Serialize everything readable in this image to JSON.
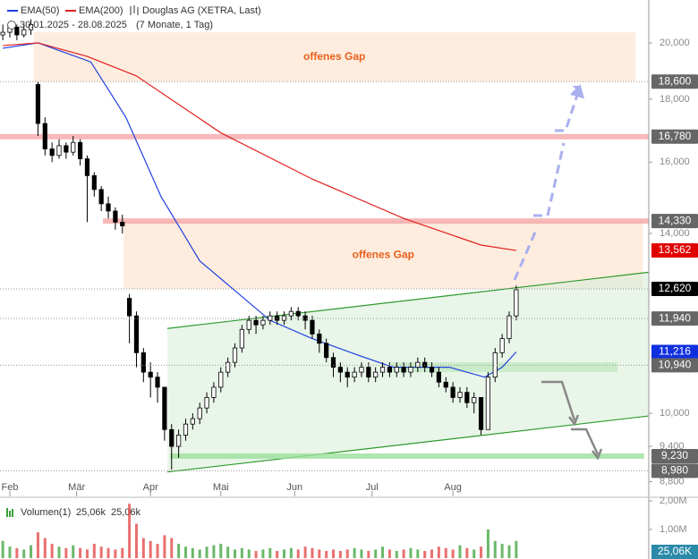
{
  "chart_data": [
    {
      "type": "candlestick",
      "title": "Douglas AG (XETRA, Last)",
      "subtitle": "30.01.2025 - 28.08.2025",
      "period": "(7 Monate, 1 Tag)",
      "x": [
        0,
        2,
        4,
        6,
        8,
        10,
        12,
        14,
        16,
        18,
        20,
        22,
        24,
        26,
        28,
        30,
        32,
        34,
        36,
        38,
        40,
        42,
        44,
        46,
        48,
        50,
        52,
        54,
        56,
        58,
        60,
        62,
        64,
        66,
        68,
        70,
        72,
        74,
        76,
        78,
        80,
        82,
        84,
        86,
        88,
        90,
        92,
        94,
        96,
        98,
        100,
        102,
        104,
        106,
        108,
        110,
        112,
        114,
        116,
        118,
        120,
        122,
        124,
        126,
        128,
        130,
        132,
        134,
        136,
        138,
        140,
        142,
        144,
        146
      ],
      "open": [
        20300,
        20400,
        20600,
        20300,
        20500,
        18500,
        17200,
        16400,
        16200,
        16500,
        16300,
        16600,
        16100,
        15600,
        15200,
        14800,
        14600,
        14300,
        12400,
        12000,
        11200,
        10800,
        10700,
        10500,
        9700,
        9400,
        9600,
        9800,
        9900,
        10100,
        10300,
        10500,
        10800,
        11000,
        11300,
        11700,
        11900,
        11800,
        11900,
        12000,
        11900,
        12000,
        12100,
        12000,
        11900,
        11600,
        11400,
        11100,
        10900,
        10800,
        10700,
        10800,
        10900,
        10700,
        10800,
        10900,
        10800,
        10900,
        10800,
        10900,
        11000,
        10900,
        10800,
        10600,
        10500,
        10300,
        10400,
        10200,
        10300,
        9700,
        10700,
        11200,
        11500,
        12000
      ],
      "high": [
        20700,
        20800,
        20700,
        20700,
        20900,
        18600,
        17400,
        16600,
        16700,
        16600,
        16800,
        16700,
        16200,
        15700,
        15300,
        15000,
        14700,
        14500,
        12500,
        12100,
        11300,
        11000,
        10800,
        10500,
        9800,
        9700,
        9900,
        10000,
        10200,
        10400,
        10600,
        10900,
        11100,
        11400,
        11800,
        12000,
        12000,
        12000,
        12100,
        12100,
        12100,
        12200,
        12200,
        12100,
        12000,
        11700,
        11500,
        11200,
        11000,
        10900,
        10900,
        11000,
        11000,
        10900,
        11000,
        11000,
        11000,
        11000,
        11000,
        11100,
        11100,
        11000,
        10900,
        10700,
        10600,
        10500,
        10500,
        10400,
        10300,
        10800,
        11300,
        11600,
        12100,
        12700
      ],
      "low": [
        20100,
        20200,
        20100,
        20200,
        20300,
        16800,
        16200,
        16000,
        16100,
        16100,
        16200,
        15900,
        14300,
        15000,
        14600,
        14400,
        14100,
        14000,
        11400,
        10900,
        10600,
        10300,
        10200,
        9500,
        9000,
        9200,
        9500,
        9700,
        9800,
        10000,
        10200,
        10400,
        10700,
        10900,
        11200,
        11600,
        11600,
        11700,
        11800,
        11800,
        11800,
        11900,
        11900,
        11700,
        11500,
        11200,
        11000,
        10700,
        10600,
        10500,
        10600,
        10700,
        10600,
        10600,
        10700,
        10700,
        10700,
        10700,
        10700,
        10800,
        10800,
        10700,
        10500,
        10400,
        10200,
        10200,
        10100,
        10000,
        9600,
        9700,
        10600,
        11100,
        11400,
        11900
      ],
      "close": [
        20400,
        20600,
        20300,
        20500,
        20700,
        17200,
        16400,
        16200,
        16500,
        16300,
        16600,
        16100,
        15600,
        15200,
        14800,
        14600,
        14300,
        14200,
        12000,
        11200,
        10800,
        10700,
        10500,
        9700,
        9400,
        9600,
        9800,
        9900,
        10100,
        10300,
        10500,
        10800,
        11000,
        11300,
        11700,
        11900,
        11800,
        11900,
        12000,
        11900,
        12000,
        12100,
        12000,
        11900,
        11600,
        11400,
        11100,
        10900,
        10800,
        10700,
        10800,
        10900,
        10700,
        10800,
        10900,
        10800,
        10900,
        10800,
        10900,
        11000,
        10900,
        10800,
        10600,
        10500,
        10300,
        10400,
        10200,
        10300,
        9700,
        10700,
        11200,
        11500,
        12000,
        12600
      ],
      "up_color": "#ffffff",
      "down_color": "#000000",
      "xlim": [
        -0.8,
        183.7
      ],
      "xticks": [
        {
          "value": 2,
          "label": "Feb"
        },
        {
          "value": 21,
          "label": "Mär"
        },
        {
          "value": 42,
          "label": "Apr"
        },
        {
          "value": 62,
          "label": "Mai"
        },
        {
          "value": 83,
          "label": "Jun"
        },
        {
          "value": 105,
          "label": "Jul"
        },
        {
          "value": 128,
          "label": "Aug"
        }
      ],
      "ylim": [
        8560,
        21670
      ],
      "log_scale": true,
      "yticks": [
        {
          "value": 20000,
          "label": "20,000"
        },
        {
          "value": 18000,
          "label": "18,000"
        },
        {
          "value": 16000,
          "label": "16,000"
        },
        {
          "value": 14000,
          "label": "14,000"
        },
        {
          "value": 10000,
          "label": "10,000"
        },
        {
          "value": 9400,
          "label": "9,400"
        },
        {
          "value": 8800,
          "label": "8,800"
        }
      ],
      "series": [
        {
          "name": "EMA(50)",
          "color": "#2040e0",
          "x": [
            0,
            10,
            25,
            35,
            45,
            56,
            76,
            88,
            101,
            111,
            127,
            137,
            142,
            146
          ],
          "values": [
            19800,
            20000,
            19300,
            17400,
            15000,
            13300,
            11900,
            11500,
            11150,
            10900,
            10900,
            10700,
            10900,
            11216
          ]
        },
        {
          "name": "EMA(200)",
          "color": "#e02020",
          "x": [
            0,
            10,
            24,
            38,
            62,
            88,
            114,
            136,
            146
          ],
          "values": [
            19900,
            20000,
            19500,
            18800,
            16900,
            15500,
            14400,
            13700,
            13562
          ]
        }
      ],
      "zones": [
        {
          "label": "offenes Gap",
          "from": 18600,
          "to": 20400,
          "x": [
            8.7,
            179.9
          ],
          "color": "#fde6d3"
        },
        {
          "label": "offenes Gap",
          "from": 12620,
          "to": 14330,
          "x": [
            34.4,
            182
          ],
          "color": "#fde6d3"
        },
        {
          "from": 10800,
          "to": 11000,
          "x": [
            110.4,
            174.8
          ],
          "color": "#9be09b"
        }
      ],
      "bands": [
        {
          "value": 16780,
          "x": [
            -0.8,
            183.7
          ],
          "color": "#f4a8a8"
        },
        {
          "value": 14330,
          "x": [
            28.5,
            183.7
          ],
          "color": "#f4a8a8"
        },
        {
          "value": 9230,
          "x": [
            47.6,
            182.4
          ],
          "color": "#9be09b"
        }
      ],
      "channel": {
        "x": [
          46.8,
          183.7
        ],
        "upper": [
          11720,
          13020
        ],
        "lower": [
          8960,
          9950
        ],
        "color": "#2e9a2e"
      },
      "levels": [
        {
          "value": 18600,
          "label": "18,600",
          "color": "#666666",
          "dotted": true
        },
        {
          "value": 16780,
          "label": "16,780",
          "color": "#666666"
        },
        {
          "value": 14330,
          "label": "14,330",
          "color": "#666666"
        },
        {
          "value": 13562,
          "label": "13,562",
          "color": "#e00000"
        },
        {
          "value": 12620,
          "label": "12,620",
          "color": "#000000",
          "dotted": true
        },
        {
          "value": 11940,
          "label": "11,940",
          "color": "#666666",
          "dotted": true
        },
        {
          "value": 11216,
          "label": "11,216",
          "color": "#1030e0"
        },
        {
          "value": 10940,
          "label": "10,940",
          "color": "#666666",
          "dotted": true
        },
        {
          "value": 9230,
          "label": "9,230",
          "color": "#666666"
        },
        {
          "value": 8980,
          "label": "8,980",
          "color": "#666666",
          "dotted": true
        }
      ]
    },
    {
      "type": "bar",
      "title": "Volumen(1)",
      "readouts": [
        "25,06k",
        "25,06k"
      ],
      "values": [
        600000,
        400000,
        350000,
        300000,
        450000,
        900000,
        700000,
        500000,
        400000,
        350000,
        450000,
        350000,
        300000,
        500000,
        400000,
        350000,
        300000,
        350000,
        1900000,
        1200000,
        700000,
        600000,
        500000,
        800000,
        700000,
        500000,
        400000,
        350000,
        300000,
        400000,
        450000,
        500000,
        400000,
        300000,
        350000,
        300000,
        250000,
        300000,
        350000,
        250000,
        300000,
        350000,
        300000,
        400000,
        350000,
        300000,
        250000,
        300000,
        250000,
        300000,
        350000,
        300000,
        250000,
        300000,
        400000,
        300000,
        250000,
        300000,
        350000,
        300000,
        250000,
        300000,
        400000,
        350000,
        300000,
        450000,
        350000,
        300000,
        400000,
        1000000,
        600000,
        500000,
        450000,
        600000
      ],
      "up_color": "#3aa03a",
      "down_color": "#e04040",
      "ylim": [
        0,
        2187500
      ],
      "yticks": [
        {
          "value": 1000000,
          "label": "1,00M"
        },
        {
          "value": 2000000,
          "label": "2,00M"
        }
      ],
      "last": {
        "value": 25060,
        "label": "25,06K"
      }
    }
  ]
}
